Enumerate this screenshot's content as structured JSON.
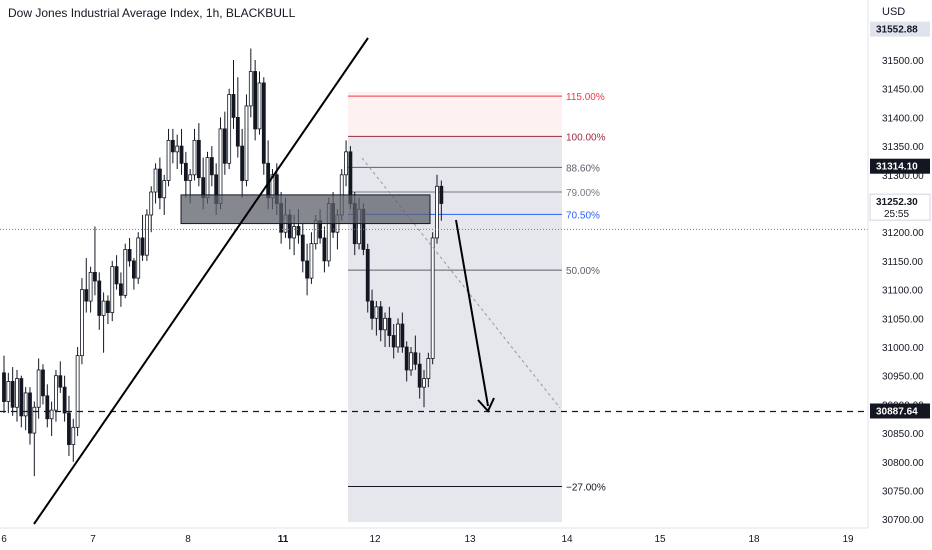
{
  "title": "Dow Jones Industrial Average Index, 1h, BLACKBULL",
  "currency": "USD",
  "colors": {
    "candle": "#131722",
    "trendline": "#000000",
    "zone_fill": "#5d606b",
    "fib_115": "#f23645",
    "fib_100": "#9c2a3e",
    "fib_70": "#2962ff",
    "fib_gray": "#787b86",
    "fib_dark": "#131722",
    "fib_shade": "#d1d4dc"
  },
  "chart_data": {
    "type": "candlestick",
    "ylim": [
      30680,
      31600
    ],
    "xlim": [
      0,
      932
    ],
    "y_ticks": [
      "31500.00",
      "31450.00",
      "31400.00",
      "31350.00",
      "31300.00",
      "31250.00",
      "31200.00",
      "31150.00",
      "31100.00",
      "31050.00",
      "31000.00",
      "30950.00",
      "30900.00",
      "30850.00",
      "30800.00",
      "30750.00",
      "30700.00"
    ],
    "x_ticks": [
      {
        "label": "6",
        "x": 4
      },
      {
        "label": "7",
        "x": 93
      },
      {
        "label": "8",
        "x": 188
      },
      {
        "label": "11",
        "x": 283
      },
      {
        "label": "12",
        "x": 375
      },
      {
        "label": "13",
        "x": 470
      },
      {
        "label": "14",
        "x": 567
      },
      {
        "label": "15",
        "x": 660
      },
      {
        "label": "18",
        "x": 754
      },
      {
        "label": "19",
        "x": 848
      }
    ],
    "price_labels": [
      {
        "label": "31552.88",
        "value": 31552.88,
        "style": "muted"
      },
      {
        "label": "31314.10",
        "value": 31314.1,
        "style": "dark"
      },
      {
        "label": "31252.30",
        "value": 31252.3,
        "style": "current",
        "sub": "25:55"
      },
      {
        "label": "30887.64",
        "value": 30887.64,
        "style": "dark"
      }
    ],
    "fib_levels": [
      {
        "label": "115.00%",
        "value": 31437,
        "color": "#f23645"
      },
      {
        "label": "100.00%",
        "value": 31367,
        "color": "#9c2a3e"
      },
      {
        "label": "88.60%",
        "value": 31313,
        "color": "#5d606b"
      },
      {
        "label": "79.00%",
        "value": 31270,
        "color": "#787b86"
      },
      {
        "label": "70.50%",
        "value": 31231,
        "color": "#2962ff"
      },
      {
        "label": "50.00%",
        "value": 31134,
        "color": "#5d606b"
      },
      {
        "label": "−27.00%",
        "value": 30757,
        "color": "#131722"
      }
    ],
    "horizontal_dashed": 30887.64,
    "dotted_current": 31205,
    "candles": [
      [
        30955,
        30985,
        30885,
        30905
      ],
      [
        30905,
        30955,
        30885,
        30940
      ],
      [
        30940,
        30965,
        30880,
        30895
      ],
      [
        30895,
        30960,
        30870,
        30945
      ],
      [
        30945,
        30950,
        30860,
        30880
      ],
      [
        30880,
        30930,
        30855,
        30920
      ],
      [
        30920,
        30930,
        30830,
        30850
      ],
      [
        30850,
        30905,
        30775,
        30895
      ],
      [
        30895,
        30980,
        30875,
        30960
      ],
      [
        30960,
        30970,
        30900,
        30915
      ],
      [
        30915,
        30935,
        30860,
        30875
      ],
      [
        30875,
        30905,
        30845,
        30890
      ],
      [
        30890,
        30960,
        30870,
        30950
      ],
      [
        30950,
        30975,
        30920,
        30930
      ],
      [
        30930,
        30950,
        30870,
        30885
      ],
      [
        30885,
        30915,
        30810,
        30830
      ],
      [
        30830,
        30875,
        30800,
        30860
      ],
      [
        30860,
        31000,
        30845,
        30985
      ],
      [
        30985,
        31120,
        30970,
        31100
      ],
      [
        31100,
        31155,
        31060,
        31080
      ],
      [
        31080,
        31140,
        31060,
        31130
      ],
      [
        31130,
        31210,
        31090,
        31115
      ],
      [
        31115,
        31130,
        31030,
        31055
      ],
      [
        31055,
        31095,
        30990,
        31080
      ],
      [
        31080,
        31090,
        31040,
        31060
      ],
      [
        31060,
        31150,
        31045,
        31140
      ],
      [
        31140,
        31160,
        31100,
        31110
      ],
      [
        31110,
        31130,
        31070,
        31090
      ],
      [
        31090,
        31180,
        31085,
        31170
      ],
      [
        31170,
        31190,
        31140,
        31150
      ],
      [
        31150,
        31155,
        31100,
        31120
      ],
      [
        31120,
        31200,
        31110,
        31190
      ],
      [
        31190,
        31230,
        31150,
        31160
      ],
      [
        31160,
        31240,
        31150,
        31230
      ],
      [
        31230,
        31280,
        31200,
        31270
      ],
      [
        31270,
        31320,
        31250,
        31310
      ],
      [
        31310,
        31330,
        31240,
        31260
      ],
      [
        31260,
        31300,
        31230,
        31290
      ],
      [
        31290,
        31380,
        31280,
        31360
      ],
      [
        31360,
        31380,
        31320,
        31340
      ],
      [
        31340,
        31370,
        31310,
        31350
      ],
      [
        31350,
        31380,
        31300,
        31320
      ],
      [
        31320,
        31340,
        31260,
        31290
      ],
      [
        31290,
        31310,
        31250,
        31300
      ],
      [
        31300,
        31380,
        31290,
        31360
      ],
      [
        31360,
        31390,
        31280,
        31295
      ],
      [
        31295,
        31330,
        31240,
        31260
      ],
      [
        31260,
        31340,
        31250,
        31330
      ],
      [
        31330,
        31350,
        31280,
        31300
      ],
      [
        31300,
        31320,
        31230,
        31250
      ],
      [
        31250,
        31400,
        31240,
        31380
      ],
      [
        31380,
        31410,
        31300,
        31320
      ],
      [
        31320,
        31450,
        31310,
        31440
      ],
      [
        31440,
        31500,
        31380,
        31400
      ],
      [
        31400,
        31470,
        31330,
        31350
      ],
      [
        31350,
        31380,
        31260,
        31290
      ],
      [
        31290,
        31440,
        31280,
        31420
      ],
      [
        31420,
        31520,
        31400,
        31480
      ],
      [
        31480,
        31500,
        31360,
        31380
      ],
      [
        31380,
        31480,
        31370,
        31460
      ],
      [
        31460,
        31470,
        31300,
        31320
      ],
      [
        31320,
        31360,
        31240,
        31260
      ],
      [
        31260,
        31310,
        31240,
        31300
      ],
      [
        31300,
        31320,
        31230,
        31250
      ],
      [
        31250,
        31270,
        31180,
        31200
      ],
      [
        31200,
        31260,
        31190,
        31230
      ],
      [
        31230,
        31240,
        31170,
        31190
      ],
      [
        31190,
        31230,
        31160,
        31210
      ],
      [
        31210,
        31240,
        31180,
        31195
      ],
      [
        31195,
        31215,
        31130,
        31150
      ],
      [
        31150,
        31180,
        31090,
        31120
      ],
      [
        31120,
        31200,
        31110,
        31180
      ],
      [
        31180,
        31230,
        31170,
        31220
      ],
      [
        31220,
        31240,
        31180,
        31190
      ],
      [
        31190,
        31210,
        31130,
        31150
      ],
      [
        31150,
        31260,
        31140,
        31250
      ],
      [
        31250,
        31270,
        31190,
        31200
      ],
      [
        31200,
        31240,
        31170,
        31230
      ],
      [
        31230,
        31310,
        31220,
        31300
      ],
      [
        31300,
        31360,
        31280,
        31340
      ],
      [
        31340,
        31350,
        31240,
        31250
      ],
      [
        31250,
        31270,
        31160,
        31180
      ],
      [
        31180,
        31260,
        31170,
        31240
      ],
      [
        31240,
        31250,
        31160,
        31170
      ],
      [
        31170,
        31180,
        31060,
        31080
      ],
      [
        31080,
        31100,
        31030,
        31050
      ],
      [
        31050,
        31080,
        31020,
        31070
      ],
      [
        31070,
        31080,
        31010,
        31030
      ],
      [
        31030,
        31060,
        31000,
        31050
      ],
      [
        31050,
        31070,
        31000,
        31020
      ],
      [
        31020,
        31040,
        30980,
        31000
      ],
      [
        31000,
        31050,
        30990,
        31040
      ],
      [
        31040,
        31060,
        30990,
        31000
      ],
      [
        31000,
        31010,
        30940,
        30960
      ],
      [
        30960,
        31000,
        30950,
        30990
      ],
      [
        30990,
        31020,
        30960,
        30970
      ],
      [
        30970,
        30990,
        30910,
        30930
      ],
      [
        30930,
        30960,
        30895,
        30945
      ],
      [
        30945,
        30990,
        30930,
        30980
      ],
      [
        30980,
        31200,
        30970,
        31190
      ],
      [
        31190,
        31300,
        31180,
        31280
      ],
      [
        31280,
        31290,
        31220,
        31250
      ]
    ]
  },
  "annotations": {
    "demand_zone": [
      31265,
      31215
    ],
    "fib_box_x": [
      348,
      562
    ]
  }
}
